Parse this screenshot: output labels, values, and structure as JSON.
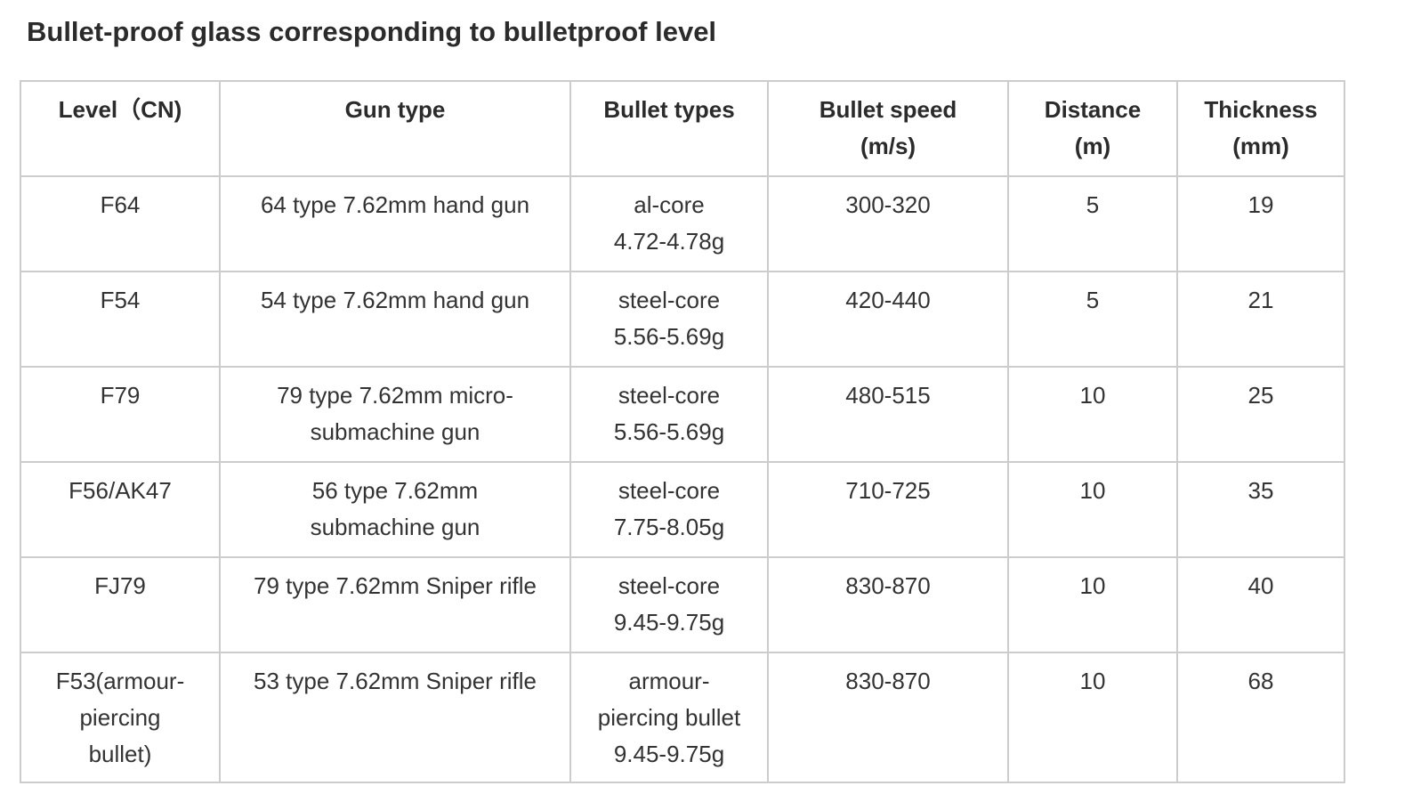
{
  "title": "Bullet-proof glass corresponding to bulletproof level",
  "table": {
    "headers": [
      {
        "lines": [
          "Level（CN)"
        ]
      },
      {
        "lines": [
          "Gun type"
        ]
      },
      {
        "lines": [
          "Bullet types"
        ]
      },
      {
        "lines": [
          "Bullet speed",
          "(m/s)"
        ]
      },
      {
        "lines": [
          "Distance",
          "(m)"
        ]
      },
      {
        "lines": [
          "Thickness",
          "(mm)"
        ]
      }
    ],
    "rows": [
      {
        "level": [
          "F64"
        ],
        "gun": [
          "64 type 7.62mm hand gun"
        ],
        "bullet": [
          "al-core",
          "4.72-4.78g"
        ],
        "speed": "300-320",
        "distance": "5",
        "thickness": "19"
      },
      {
        "level": [
          "F54"
        ],
        "gun": [
          "54 type 7.62mm hand gun"
        ],
        "bullet": [
          "steel-core",
          "5.56-5.69g"
        ],
        "speed": "420-440",
        "distance": "5",
        "thickness": "21"
      },
      {
        "level": [
          "F79"
        ],
        "gun": [
          "79 type 7.62mm micro-",
          "submachine gun"
        ],
        "bullet": [
          "steel-core",
          "5.56-5.69g"
        ],
        "speed": "480-515",
        "distance": "10",
        "thickness": "25"
      },
      {
        "level": [
          "F56/AK47"
        ],
        "gun": [
          "56 type 7.62mm",
          "submachine gun"
        ],
        "bullet": [
          "steel-core",
          "7.75-8.05g"
        ],
        "speed": "710-725",
        "distance": "10",
        "thickness": "35"
      },
      {
        "level": [
          "FJ79"
        ],
        "gun": [
          "79 type 7.62mm Sniper rifle"
        ],
        "bullet": [
          "steel-core",
          "9.45-9.75g"
        ],
        "speed": "830-870",
        "distance": "10",
        "thickness": "40"
      },
      {
        "level": [
          "F53(armour-",
          "piercing",
          "bullet)"
        ],
        "gun": [
          "53 type 7.62mm Sniper rifle"
        ],
        "bullet": [
          "armour-",
          "piercing bullet",
          "9.45-9.75g"
        ],
        "speed": "830-870",
        "distance": "10",
        "thickness": "68"
      }
    ]
  }
}
